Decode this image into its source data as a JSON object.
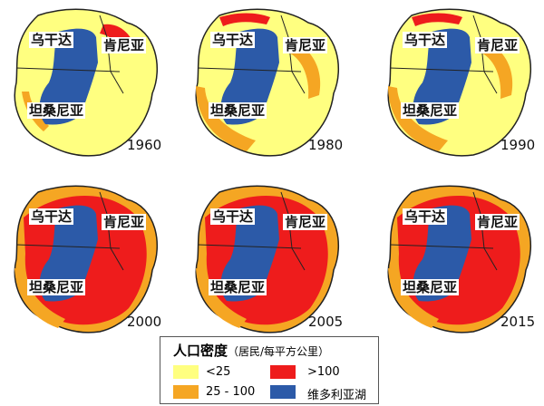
{
  "regions": [
    "乌干达",
    "肯尼亚",
    "坦桑尼亚"
  ],
  "panels": [
    {
      "year": "1960",
      "density_class": "low"
    },
    {
      "year": "1980",
      "density_class": "mid"
    },
    {
      "year": "1990",
      "density_class": "mid"
    },
    {
      "year": "2000",
      "density_class": "high"
    },
    {
      "year": "2005",
      "density_class": "high"
    },
    {
      "year": "2015",
      "density_class": "high"
    }
  ],
  "legend": {
    "title": "人口密度",
    "unit": "（居民/每平方公里）",
    "items": [
      {
        "label": "<25",
        "color": "#ffff80"
      },
      {
        "label": "25 - 100",
        "color": "#f5a623"
      },
      {
        "label": ">100",
        "color": "#ee1c1c"
      },
      {
        "label": "维多利亚湖",
        "color": "#2c5aa8"
      }
    ]
  },
  "colors": {
    "low": "#ffff80",
    "mid": "#f5a623",
    "high": "#ee1c1c",
    "lake": "#2c5aa8",
    "border": "#222222"
  }
}
